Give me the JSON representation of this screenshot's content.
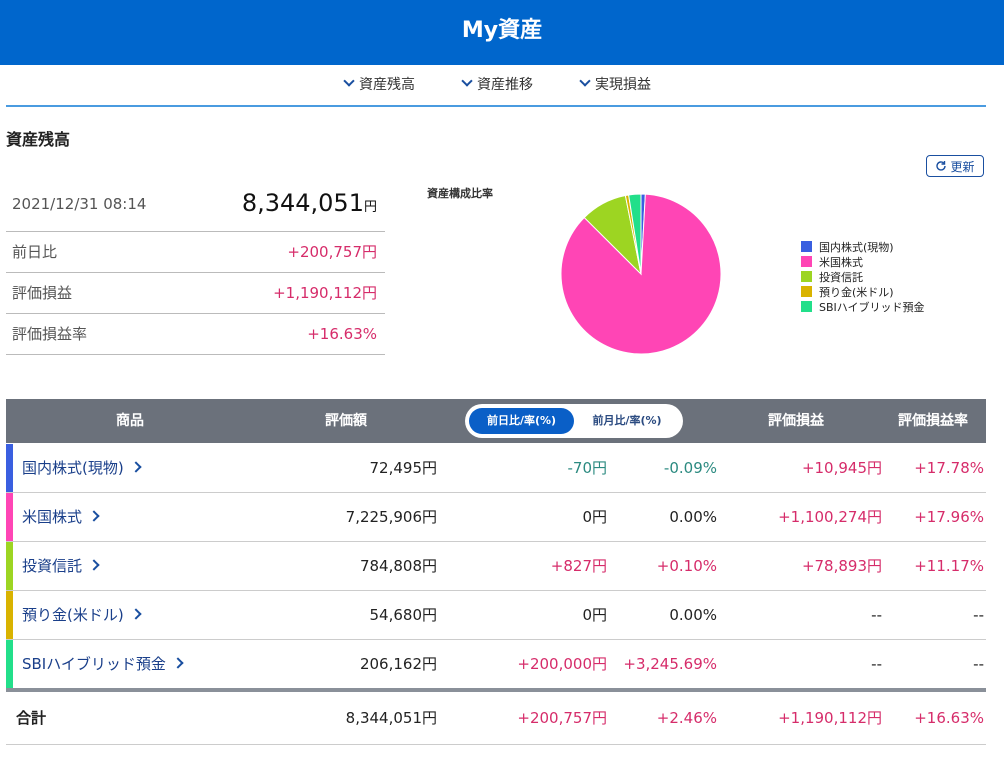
{
  "header": {
    "title": "My資産"
  },
  "nav": [
    "資産残高",
    "資産推移",
    "実現損益"
  ],
  "section_title": "資産残高",
  "refresh": "更新",
  "summary": {
    "datetime": "2021/12/31 08:14",
    "total": "8,344,051",
    "total_unit": "円",
    "rows": [
      [
        "前日比",
        "+200,757円"
      ],
      [
        "評価損益",
        "+1,190,112円"
      ],
      [
        "評価損益率",
        "+16.63%"
      ]
    ]
  },
  "chart_data": {
    "type": "pie",
    "title": "資産構成比率",
    "categories": [
      "国内株式(現物)",
      "米国株式",
      "投資信託",
      "預り金(米ドル)",
      "SBIハイブリッド預金"
    ],
    "values": [
      72495,
      7225906,
      784808,
      54680,
      206162
    ],
    "colors": [
      "#3a5fe0",
      "#ff45b5",
      "#9dd522",
      "#d9b300",
      "#22df8a"
    ],
    "start": "top",
    "direction": "clockwise"
  },
  "table": {
    "headers": [
      "商品",
      "評価額",
      "評価損益",
      "評価損益率"
    ],
    "toggle": [
      "前日比/率(%)",
      "前月比/率(%)"
    ],
    "rows": [
      [
        "国内株式(現物)",
        "72,495円",
        "-70円",
        "-0.09%",
        "+10,945円",
        "+17.78%"
      ],
      [
        "米国株式",
        "7,225,906円",
        "0円",
        "0.00%",
        "+1,100,274円",
        "+17.96%"
      ],
      [
        "投資信託",
        "784,808円",
        "+827円",
        "+0.10%",
        "+78,893円",
        "+11.17%"
      ],
      [
        "預り金(米ドル)",
        "54,680円",
        "0円",
        "0.00%",
        "--",
        "--"
      ],
      [
        "SBIハイブリッド預金",
        "206,162円",
        "+200,000円",
        "+3,245.69%",
        "--",
        "--"
      ]
    ],
    "total": [
      "合計",
      "8,344,051円",
      "+200,757円",
      "+2.46%",
      "+1,190,112円",
      "+16.63%"
    ]
  }
}
